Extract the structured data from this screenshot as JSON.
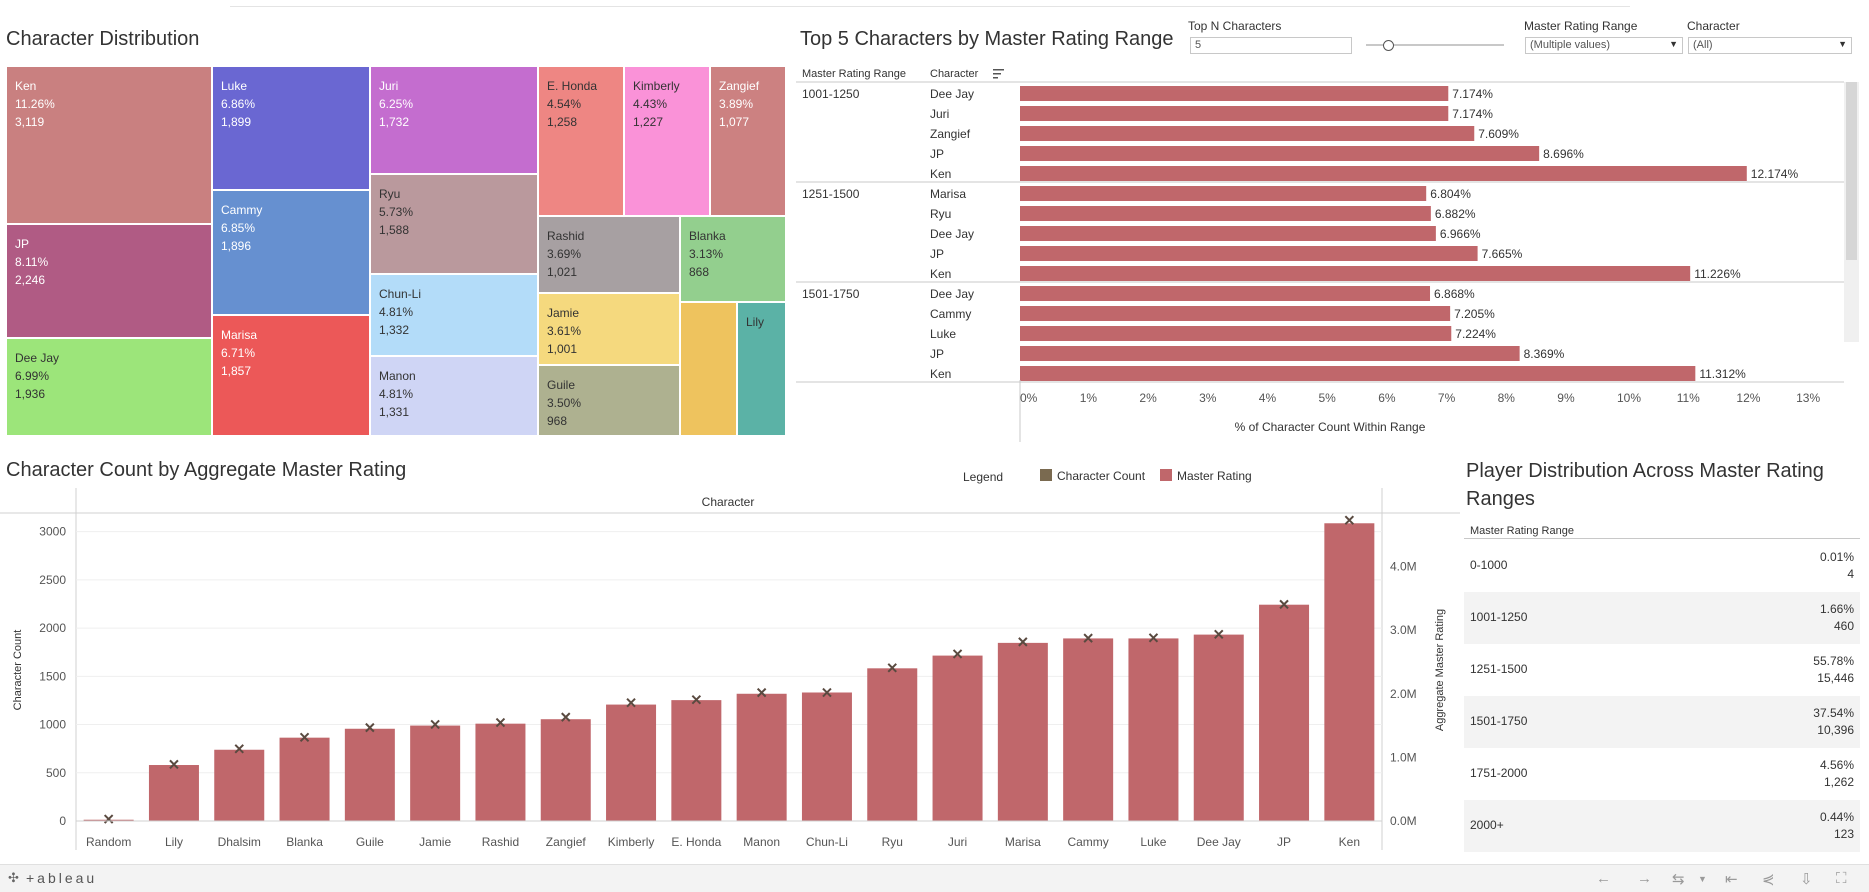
{
  "treemap": {
    "title": "Character Distribution",
    "cells": [
      {
        "name": "Ken",
        "pct": "11.26%",
        "count": "3,119",
        "color": "#c98080",
        "dark": false
      },
      {
        "name": "JP",
        "pct": "8.11%",
        "count": "2,246",
        "color": "#b05b84",
        "dark": false
      },
      {
        "name": "Dee Jay",
        "pct": "6.99%",
        "count": "1,936",
        "color": "#9ce57a",
        "dark": true
      },
      {
        "name": "Luke",
        "pct": "6.86%",
        "count": "1,899",
        "color": "#6a67d2",
        "dark": false
      },
      {
        "name": "Cammy",
        "pct": "6.85%",
        "count": "1,896",
        "color": "#6690d0",
        "dark": false
      },
      {
        "name": "Marisa",
        "pct": "6.71%",
        "count": "1,857",
        "color": "#ec5858",
        "dark": false
      },
      {
        "name": "Juri",
        "pct": "6.25%",
        "count": "1,732",
        "color": "#c46dcf",
        "dark": false
      },
      {
        "name": "Ryu",
        "pct": "5.73%",
        "count": "1,588",
        "color": "#ba999d",
        "dark": true
      },
      {
        "name": "Chun-Li",
        "pct": "4.81%",
        "count": "1,332",
        "color": "#b3dcf9",
        "dark": true
      },
      {
        "name": "Manon",
        "pct": "4.81%",
        "count": "1,331",
        "color": "#cfd5f5",
        "dark": true
      },
      {
        "name": "E. Honda",
        "pct": "4.54%",
        "count": "1,258",
        "color": "#ee8683",
        "dark": true
      },
      {
        "name": "Kimberly",
        "pct": "4.43%",
        "count": "1,227",
        "color": "#fa92d8",
        "dark": true
      },
      {
        "name": "Zangief",
        "pct": "3.89%",
        "count": "1,077",
        "color": "#cc8181",
        "dark": false
      },
      {
        "name": "Rashid",
        "pct": "3.69%",
        "count": "1,021",
        "color": "#a7a0a2",
        "dark": true
      },
      {
        "name": "Blanka",
        "pct": "3.13%",
        "count": "868",
        "color": "#93cf8e",
        "dark": true
      },
      {
        "name": "Jamie",
        "pct": "3.61%",
        "count": "1,001",
        "color": "#f5d97e",
        "dark": true
      },
      {
        "name": "Guile",
        "pct": "3.50%",
        "count": "968",
        "color": "#aeb190",
        "dark": true
      },
      {
        "name": "",
        "pct": "",
        "count": "",
        "color": "#eec35e",
        "dark": true
      },
      {
        "name": "Lily",
        "pct": "",
        "count": "",
        "color": "#5bb2a6",
        "dark": true
      }
    ]
  },
  "top5": {
    "title": "Top 5 Characters by Master Rating Range",
    "col1": "Master Rating Range",
    "col2": "Character",
    "sort_icon": "sort-icon",
    "axis_title": "% of Character Count Within Range",
    "ticks": [
      "0%",
      "1%",
      "2%",
      "3%",
      "4%",
      "5%",
      "6%",
      "7%",
      "8%",
      "9%",
      "10%",
      "11%",
      "12%",
      "13%"
    ],
    "bar_color": "#c0676b"
  },
  "filters": {
    "topn_label": "Top N Characters",
    "topn_value": "5",
    "range_label": "Master Rating Range",
    "range_value": "(Multiple values)",
    "char_label": "Character",
    "char_value": "(All)"
  },
  "countchart": {
    "title": "Character Count by Aggregate Master Rating",
    "top_label": "Character",
    "y_left_label": "Character Count",
    "y_right_label": "Aggregate Master Rating",
    "left_ticks": [
      "0",
      "500",
      "1000",
      "1500",
      "2000",
      "2500",
      "3000"
    ],
    "right_ticks": [
      "0.0M",
      "1.0M",
      "2.0M",
      "3.0M",
      "4.0M"
    ],
    "legend_title": "Legend",
    "legend_items": [
      {
        "label": "Character Count",
        "color": "#7a6a50"
      },
      {
        "label": "Master Rating",
        "color": "#c0676b"
      }
    ]
  },
  "players": {
    "title": "Player Distribution Across Master Rating Ranges",
    "header": "Master Rating Range",
    "rows": [
      {
        "range": "0-1000",
        "pct": "0.01%",
        "count": "4"
      },
      {
        "range": "1001-1250",
        "pct": "1.66%",
        "count": "460"
      },
      {
        "range": "1251-1500",
        "pct": "55.78%",
        "count": "15,446"
      },
      {
        "range": "1501-1750",
        "pct": "37.54%",
        "count": "10,396"
      },
      {
        "range": "1751-2000",
        "pct": "4.56%",
        "count": "1,262"
      },
      {
        "range": "2000+",
        "pct": "0.44%",
        "count": "123"
      }
    ]
  },
  "toolbar": {
    "logo": "+ableau"
  },
  "chart_data": [
    {
      "type": "bar",
      "orientation": "horizontal",
      "groups": [
        {
          "range": "1001-1250",
          "characters": [
            "Dee Jay",
            "Juri",
            "Zangief",
            "JP",
            "Ken"
          ],
          "values": [
            7.174,
            7.174,
            7.609,
            8.696,
            12.174
          ],
          "labels": [
            "7.174%",
            "7.174%",
            "7.609%",
            "8.696%",
            "12.174%"
          ]
        },
        {
          "range": "1251-1500",
          "characters": [
            "Marisa",
            "Ryu",
            "Dee Jay",
            "JP",
            "Ken"
          ],
          "values": [
            6.804,
            6.882,
            6.966,
            7.665,
            11.226
          ],
          "labels": [
            "6.804%",
            "6.882%",
            "6.966%",
            "7.665%",
            "11.226%"
          ]
        },
        {
          "range": "1501-1750",
          "characters": [
            "Dee Jay",
            "Cammy",
            "Luke",
            "JP",
            "Ken"
          ],
          "values": [
            6.868,
            7.205,
            7.224,
            8.369,
            11.312
          ],
          "labels": [
            "6.868%",
            "7.205%",
            "7.224%",
            "8.369%",
            "11.312%"
          ]
        }
      ],
      "xlim": [
        0,
        13.8
      ]
    },
    {
      "type": "bar",
      "categories": [
        "Random",
        "Lily",
        "Dhalsim",
        "Blanka",
        "Guile",
        "Jamie",
        "Rashid",
        "Zangief",
        "Kimberly",
        "E. Honda",
        "Manon",
        "Chun-Li",
        "Ryu",
        "Juri",
        "Marisa",
        "Cammy",
        "Luke",
        "Dee Jay",
        "JP",
        "Ken"
      ],
      "series": [
        {
          "name": "Master Rating",
          "axis": "right",
          "values": [
            0.02,
            0.88,
            1.12,
            1.31,
            1.45,
            1.5,
            1.53,
            1.6,
            1.83,
            1.9,
            2.0,
            2.02,
            2.4,
            2.6,
            2.8,
            2.87,
            2.87,
            2.93,
            3.4,
            4.68
          ]
        },
        {
          "name": "Character Count",
          "axis": "left",
          "values": [
            20,
            587,
            748,
            868,
            968,
            1001,
            1021,
            1077,
            1227,
            1258,
            1331,
            1332,
            1588,
            1732,
            1857,
            1896,
            1899,
            1936,
            2246,
            3119
          ]
        }
      ],
      "ylim_left": [
        0,
        3100
      ],
      "ylim_right": [
        0,
        4.7
      ]
    }
  ]
}
